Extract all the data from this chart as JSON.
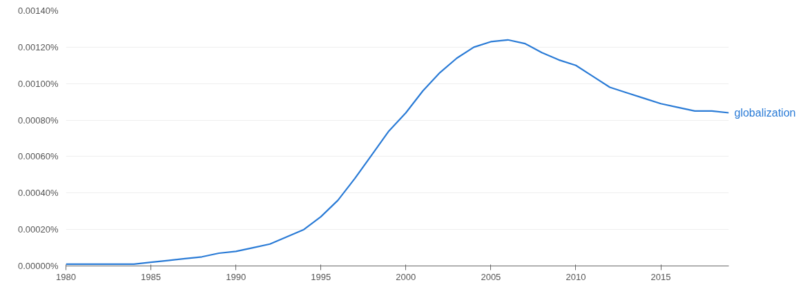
{
  "chart_data": {
    "type": "line",
    "x": [
      1980,
      1981,
      1982,
      1983,
      1984,
      1985,
      1986,
      1987,
      1988,
      1989,
      1990,
      1991,
      1992,
      1993,
      1994,
      1995,
      1996,
      1997,
      1998,
      1999,
      2000,
      2001,
      2002,
      2003,
      2004,
      2005,
      2006,
      2007,
      2008,
      2009,
      2010,
      2011,
      2012,
      2013,
      2014,
      2015,
      2016,
      2017,
      2018,
      2019
    ],
    "series": [
      {
        "name": "globalization",
        "color": "#2a7bd6",
        "values": [
          1e-05,
          1e-05,
          1e-05,
          1e-05,
          1e-05,
          2e-05,
          3e-05,
          4e-05,
          5e-05,
          7e-05,
          8e-05,
          0.0001,
          0.00012,
          0.00016,
          0.0002,
          0.00027,
          0.00036,
          0.00048,
          0.00061,
          0.00074,
          0.00084,
          0.00096,
          0.00106,
          0.00114,
          0.0012,
          0.00123,
          0.00124,
          0.00122,
          0.00117,
          0.00113,
          0.0011,
          0.00104,
          0.00098,
          0.00095,
          0.00092,
          0.00089,
          0.00087,
          0.00085,
          0.00085,
          0.00084
        ]
      }
    ],
    "xlim": [
      1980,
      2019
    ],
    "xticks": [
      1980,
      1985,
      1990,
      1995,
      2000,
      2005,
      2010,
      2015
    ],
    "ylim": [
      0,
      0.0014
    ],
    "yticks": [
      {
        "value": 0,
        "label": "0.00000%"
      },
      {
        "value": 0.0002,
        "label": "0.00020%"
      },
      {
        "value": 0.0004,
        "label": "0.00040%"
      },
      {
        "value": 0.0006,
        "label": "0.00060%"
      },
      {
        "value": 0.0008,
        "label": "0.00080%"
      },
      {
        "value": 0.001,
        "label": "0.00100%"
      },
      {
        "value": 0.0012,
        "label": "0.00120%"
      },
      {
        "value": 0.0014,
        "label": "0.00140%"
      }
    ],
    "grid": "y",
    "legend": false,
    "marker": "none",
    "line_style": "solid"
  }
}
